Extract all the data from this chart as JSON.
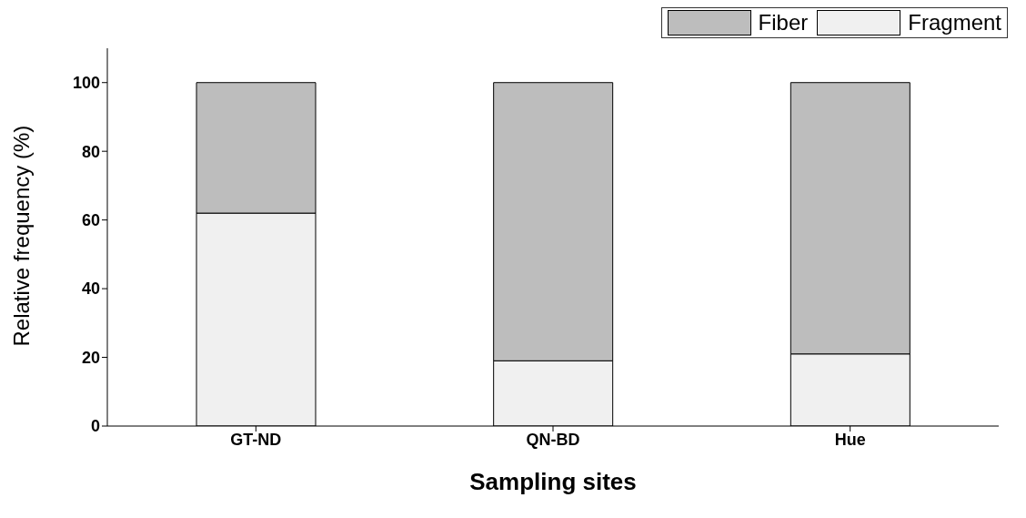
{
  "chart_data": {
    "type": "bar",
    "stacked": true,
    "xlabel": "Sampling sites",
    "ylabel": "Relative frequency (%)",
    "categories": [
      "GT-ND",
      "QN-BD",
      "Hue"
    ],
    "series": [
      {
        "name": "Fragment",
        "color": "#f0f0f0",
        "values": [
          62,
          19,
          21
        ]
      },
      {
        "name": "Fiber",
        "color": "#bdbdbd",
        "values": [
          38,
          81,
          79
        ]
      }
    ],
    "ylim": [
      0,
      110
    ],
    "yticks": [
      0,
      20,
      40,
      60,
      80,
      100
    ],
    "grid": false,
    "legend": "top right"
  }
}
